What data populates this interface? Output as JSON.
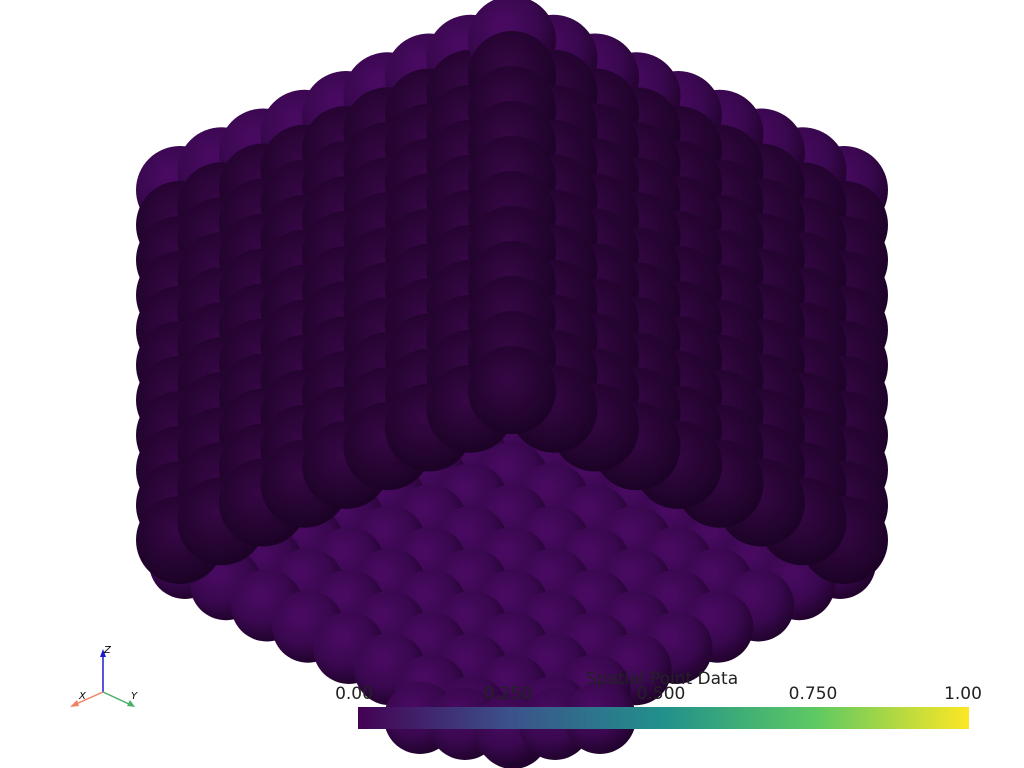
{
  "scene": {
    "colormap": "viridis",
    "background": "#ffffff",
    "sphere_color": "#3b0950",
    "floor_color": "#40074f"
  },
  "scalar_bar": {
    "title": "Spatial Point Data",
    "ticks": [
      "0.00",
      "0.250",
      "0.500",
      "0.750",
      "1.00"
    ],
    "range": [
      0.0,
      1.0
    ],
    "colors": [
      "#440154",
      "#3b528b",
      "#21918c",
      "#5ec962",
      "#fde725"
    ]
  },
  "orientation_axes": {
    "x_label": "X",
    "y_label": "Y",
    "z_label": "Z",
    "x_color": "#f08060",
    "y_color": "#4caf6a",
    "z_color": "#1a1ad0"
  }
}
